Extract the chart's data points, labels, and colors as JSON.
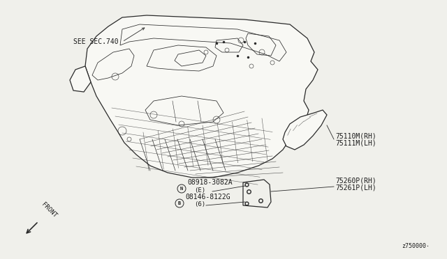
{
  "bg_color": "#f0f0eb",
  "line_color": "#2a2a2a",
  "text_color": "#1a1a1a",
  "diagram_code": "z750000⋅",
  "labels": {
    "see_sec": "SEE SEC.740",
    "part1a": "75110M(RH)",
    "part1b": "75111M(LH)",
    "part2a": "75260P(RH)",
    "part2b": "75261P(LH)",
    "bolt1_text": "08918-3082A",
    "bolt1_sub": "(E)",
    "bolt2_text": "08146-8122G",
    "bolt2_sub": "(6)",
    "front": "FRONT"
  },
  "figsize": [
    6.4,
    3.72
  ],
  "dpi": 100
}
